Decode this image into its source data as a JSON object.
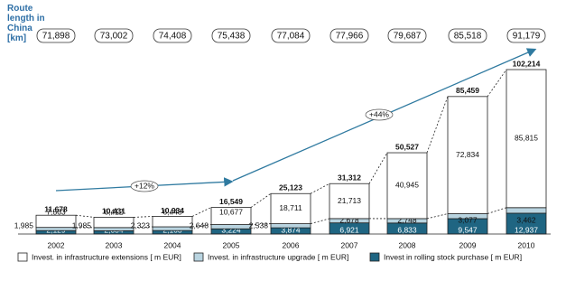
{
  "chart_data": {
    "type": "stacked-bar",
    "route_length": {
      "label": "Route length in China [km]",
      "values": [
        71898,
        73002,
        74408,
        75438,
        77084,
        77966,
        79687,
        85518,
        91179
      ],
      "value_labels": [
        "71,898",
        "73,002",
        "74,408",
        "75,438",
        "77,084",
        "77,966",
        "79,687",
        "85,518",
        "91,179"
      ]
    },
    "categories": [
      "2002",
      "2003",
      "2004",
      "2005",
      "2006",
      "2007",
      "2008",
      "2009",
      "2010"
    ],
    "series": [
      {
        "name": "Invest. in infrastructure extensions [ m EUR]",
        "color": "#ffffff",
        "values": [
          7563,
          6412,
          6448,
          10677,
          18711,
          21713,
          40945,
          72834,
          85815
        ],
        "value_labels": [
          "7,563",
          "6,412",
          "6,448",
          "10,677",
          "18,711",
          "21,713",
          "40,945",
          "72,834",
          "85,815"
        ]
      },
      {
        "name": "Invest. in infrastructure upgrade [ m EUR]",
        "color": "#b9d4e0",
        "values": [
          1985,
          1985,
          2323,
          2648,
          2538,
          2678,
          2748,
          3077,
          3462
        ],
        "value_labels": [
          "1,985",
          "1,985",
          "2,323",
          "2,648",
          "2,538",
          "2,678",
          "2,748",
          "3,077",
          "3,462"
        ]
      },
      {
        "name": "Invest in rolling stock purchase [ m EUR]",
        "color": "#1f6582",
        "values": [
          2129,
          2034,
          2163,
          3224,
          3874,
          6921,
          6833,
          9547,
          12937
        ],
        "value_labels": [
          "2,129",
          "2,034",
          "2,163",
          "3,224",
          "3,874",
          "6,921",
          "6,833",
          "9,547",
          "12,937"
        ]
      }
    ],
    "totals": {
      "values": [
        11678,
        10431,
        10934,
        16549,
        25123,
        31312,
        50527,
        85459,
        102214
      ],
      "value_labels": [
        "11,678",
        "10,431",
        "10,934",
        "16,549",
        "25,123",
        "31,312",
        "50,527",
        "85,459",
        "102,214"
      ]
    },
    "annotations": [
      "+12%",
      "+44%"
    ]
  }
}
